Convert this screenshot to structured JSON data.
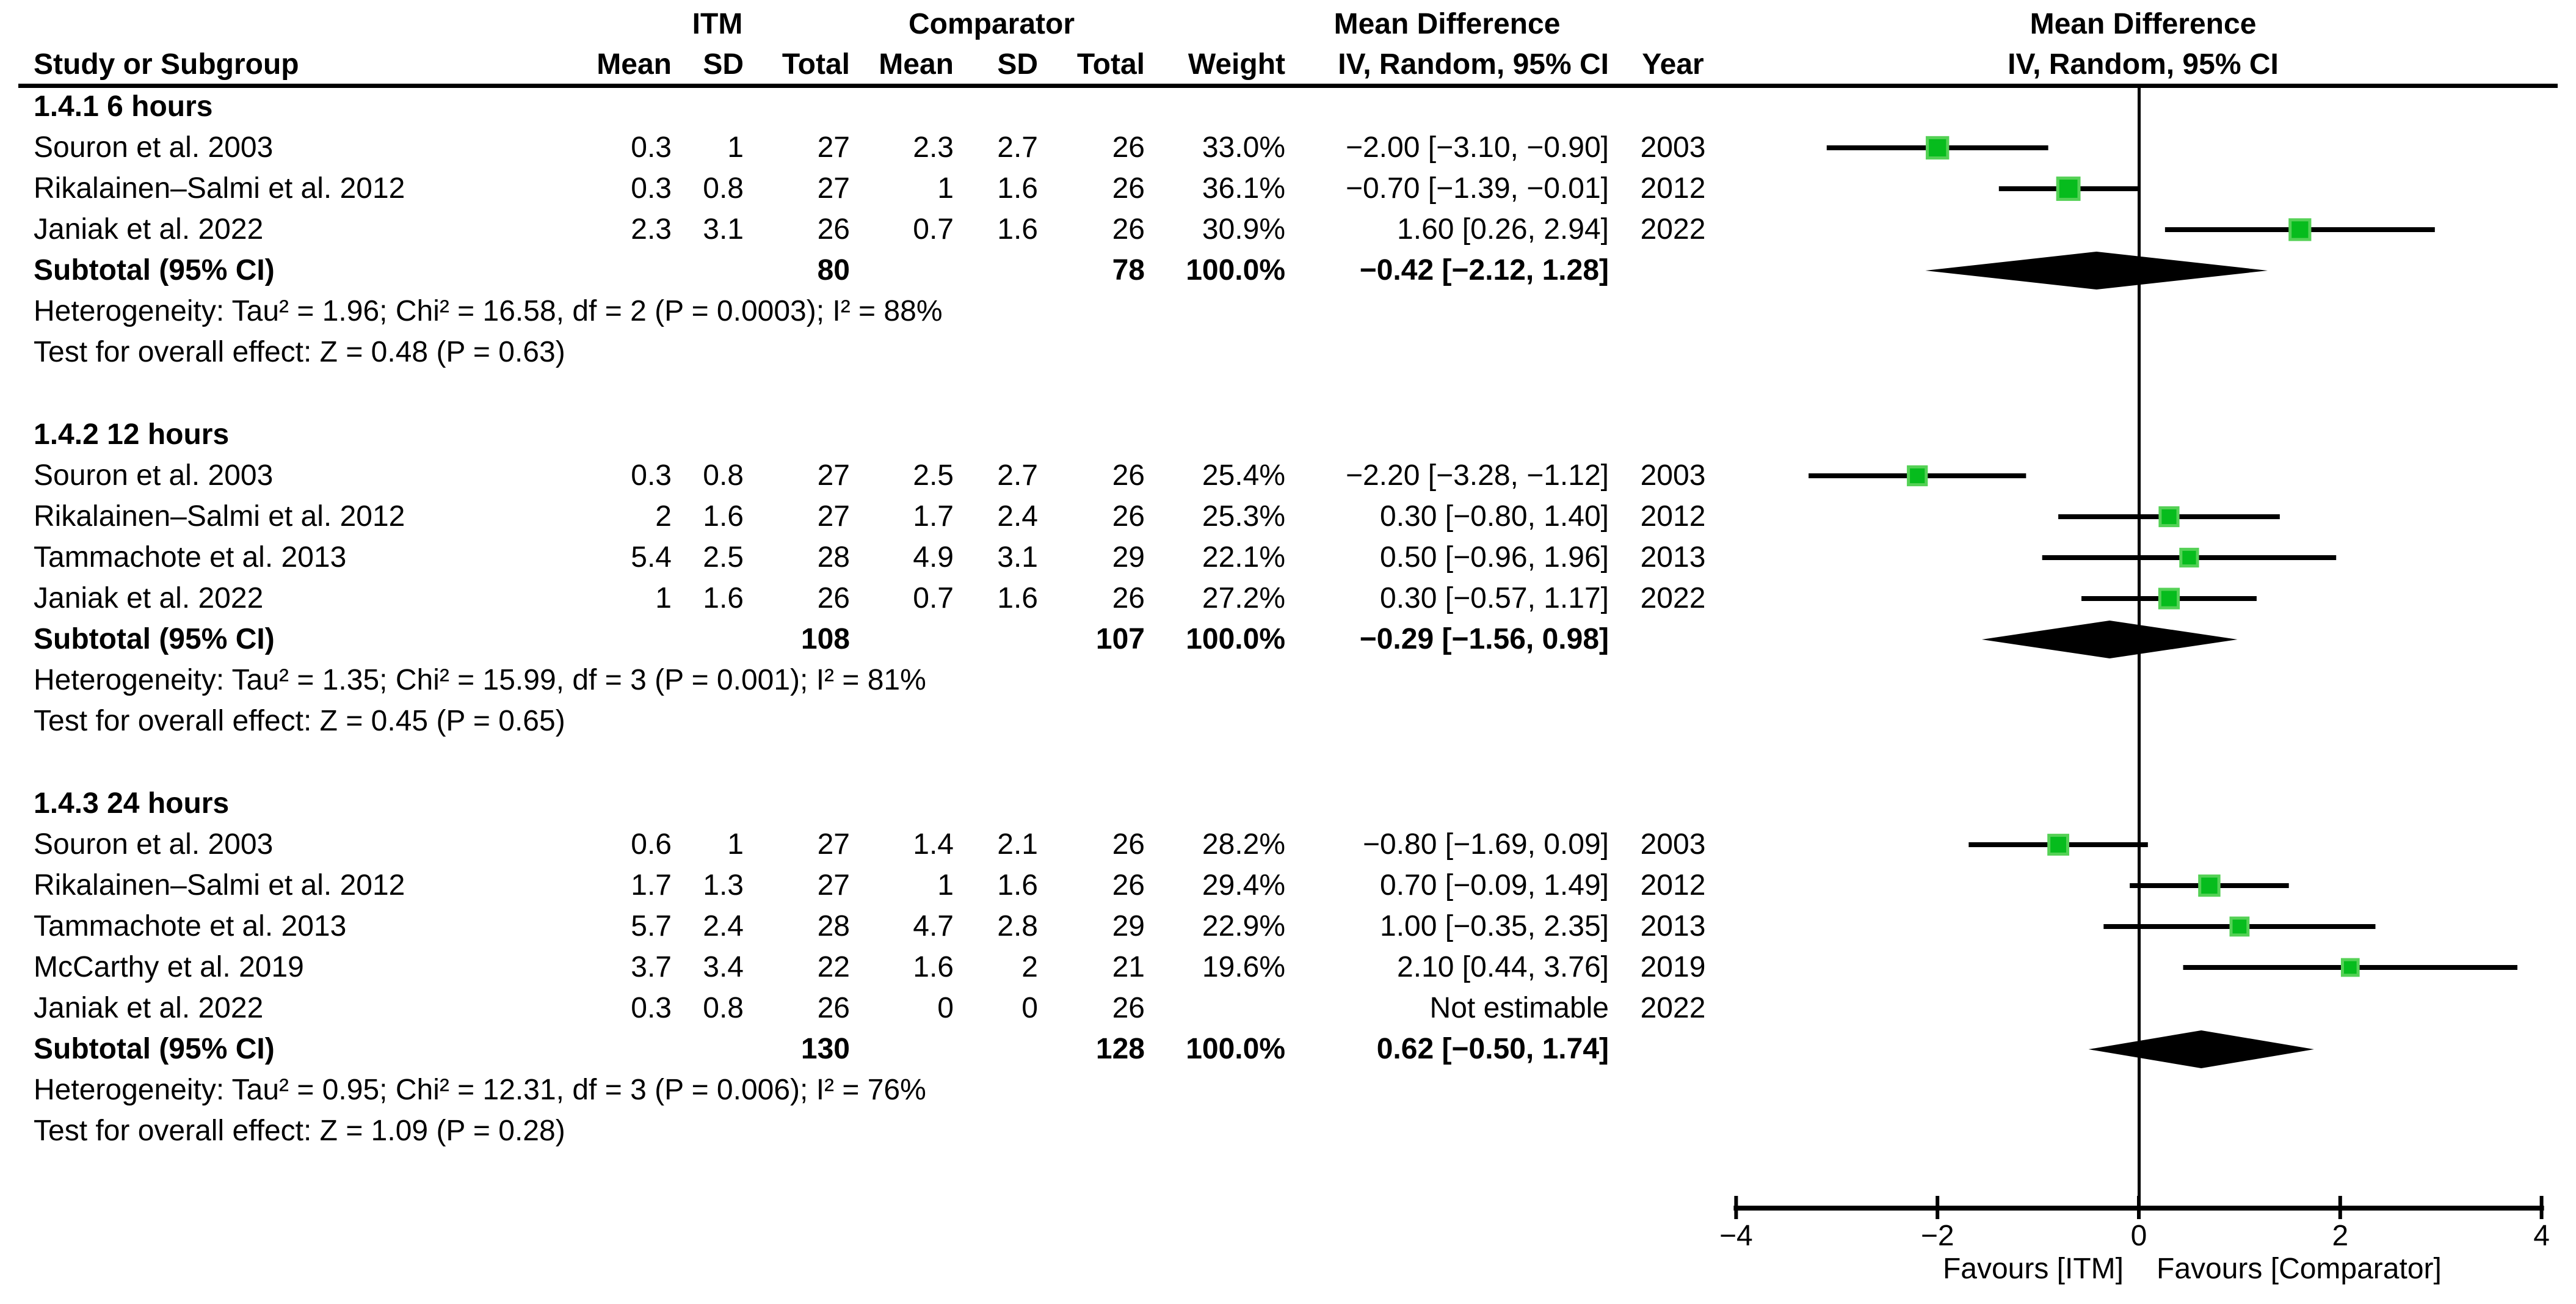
{
  "header": {
    "study_col": "Study or Subgroup",
    "group_itm": "ITM",
    "group_comparator": "Comparator",
    "md_col_line1": "Mean Difference",
    "md_col_line2": "IV, Random, 95% CI",
    "plot_col_line1": "Mean Difference",
    "plot_col_line2": "IV, Random, 95% CI",
    "mean": "Mean",
    "sd": "SD",
    "total": "Total",
    "weight": "Weight",
    "year": "Year"
  },
  "axis": {
    "min": -4,
    "max": 4,
    "tick_values": [
      -4,
      -2,
      0,
      2,
      4
    ],
    "tick_labels": [
      "−4",
      "−2",
      "0",
      "2",
      "4"
    ],
    "favours_left": "Favours [ITM]",
    "favours_right": "Favours [Comparator]"
  },
  "colors": {
    "marker_green": "#06BC1D",
    "marker_green_edge": "#55D156",
    "line_black": "#000000"
  },
  "chart_data": {
    "type": "forest",
    "effect_measure": "Mean Difference, IV, Random, 95% CI",
    "xlim": [
      -4,
      4
    ],
    "subgroups": [
      {
        "title": "1.4.1 6 hours",
        "studies": [
          {
            "name": "Souron et al. 2003",
            "itm_mean": "0.3",
            "itm_sd": "1",
            "itm_total": "27",
            "comp_mean": "2.3",
            "comp_sd": "2.7",
            "comp_total": "26",
            "weight": "33.0%",
            "md_text": "−2.00 [−3.10, −0.90]",
            "year": "2003",
            "md": -2.0,
            "lo": -3.1,
            "hi": -0.9,
            "w": 33.0
          },
          {
            "name": "Rikalainen–Salmi et al. 2012",
            "itm_mean": "0.3",
            "itm_sd": "0.8",
            "itm_total": "27",
            "comp_mean": "1",
            "comp_sd": "1.6",
            "comp_total": "26",
            "weight": "36.1%",
            "md_text": "−0.70 [−1.39, −0.01]",
            "year": "2012",
            "md": -0.7,
            "lo": -1.39,
            "hi": -0.01,
            "w": 36.1
          },
          {
            "name": "Janiak et al. 2022",
            "itm_mean": "2.3",
            "itm_sd": "3.1",
            "itm_total": "26",
            "comp_mean": "0.7",
            "comp_sd": "1.6",
            "comp_total": "26",
            "weight": "30.9%",
            "md_text": "1.60 [0.26, 2.94]",
            "year": "2022",
            "md": 1.6,
            "lo": 0.26,
            "hi": 2.94,
            "w": 30.9
          }
        ],
        "subtotal": {
          "label": "Subtotal (95% CI)",
          "itm_total": "80",
          "comp_total": "78",
          "weight": "100.0%",
          "md_text": "−0.42 [−2.12, 1.28]",
          "md": -0.42,
          "lo": -2.12,
          "hi": 1.28
        },
        "heterogeneity": "Heterogeneity: Tau² = 1.96; Chi² = 16.58, df = 2 (P = 0.0003); I² = 88%",
        "overall_effect": "Test for overall effect: Z = 0.48 (P = 0.63)"
      },
      {
        "title": "1.4.2 12 hours",
        "studies": [
          {
            "name": "Souron et al. 2003",
            "itm_mean": "0.3",
            "itm_sd": "0.8",
            "itm_total": "27",
            "comp_mean": "2.5",
            "comp_sd": "2.7",
            "comp_total": "26",
            "weight": "25.4%",
            "md_text": "−2.20 [−3.28, −1.12]",
            "year": "2003",
            "md": -2.2,
            "lo": -3.28,
            "hi": -1.12,
            "w": 25.4
          },
          {
            "name": "Rikalainen–Salmi et al. 2012",
            "itm_mean": "2",
            "itm_sd": "1.6",
            "itm_total": "27",
            "comp_mean": "1.7",
            "comp_sd": "2.4",
            "comp_total": "26",
            "weight": "25.3%",
            "md_text": "0.30 [−0.80, 1.40]",
            "year": "2012",
            "md": 0.3,
            "lo": -0.8,
            "hi": 1.4,
            "w": 25.3
          },
          {
            "name": "Tammachote et al. 2013",
            "itm_mean": "5.4",
            "itm_sd": "2.5",
            "itm_total": "28",
            "comp_mean": "4.9",
            "comp_sd": "3.1",
            "comp_total": "29",
            "weight": "22.1%",
            "md_text": "0.50 [−0.96, 1.96]",
            "year": "2013",
            "md": 0.5,
            "lo": -0.96,
            "hi": 1.96,
            "w": 22.1
          },
          {
            "name": "Janiak et al. 2022",
            "itm_mean": "1",
            "itm_sd": "1.6",
            "itm_total": "26",
            "comp_mean": "0.7",
            "comp_sd": "1.6",
            "comp_total": "26",
            "weight": "27.2%",
            "md_text": "0.30 [−0.57, 1.17]",
            "year": "2022",
            "md": 0.3,
            "lo": -0.57,
            "hi": 1.17,
            "w": 27.2
          }
        ],
        "subtotal": {
          "label": "Subtotal (95% CI)",
          "itm_total": "108",
          "comp_total": "107",
          "weight": "100.0%",
          "md_text": "−0.29 [−1.56, 0.98]",
          "md": -0.29,
          "lo": -1.56,
          "hi": 0.98
        },
        "heterogeneity": "Heterogeneity: Tau² = 1.35; Chi² = 15.99, df = 3 (P = 0.001); I² = 81%",
        "overall_effect": "Test for overall effect: Z = 0.45 (P = 0.65)"
      },
      {
        "title": "1.4.3 24 hours",
        "studies": [
          {
            "name": "Souron et al. 2003",
            "itm_mean": "0.6",
            "itm_sd": "1",
            "itm_total": "27",
            "comp_mean": "1.4",
            "comp_sd": "2.1",
            "comp_total": "26",
            "weight": "28.2%",
            "md_text": "−0.80 [−1.69, 0.09]",
            "year": "2003",
            "md": -0.8,
            "lo": -1.69,
            "hi": 0.09,
            "w": 28.2
          },
          {
            "name": "Rikalainen–Salmi et al. 2012",
            "itm_mean": "1.7",
            "itm_sd": "1.3",
            "itm_total": "27",
            "comp_mean": "1",
            "comp_sd": "1.6",
            "comp_total": "26",
            "weight": "29.4%",
            "md_text": "0.70 [−0.09, 1.49]",
            "year": "2012",
            "md": 0.7,
            "lo": -0.09,
            "hi": 1.49,
            "w": 29.4
          },
          {
            "name": "Tammachote et al. 2013",
            "itm_mean": "5.7",
            "itm_sd": "2.4",
            "itm_total": "28",
            "comp_mean": "4.7",
            "comp_sd": "2.8",
            "comp_total": "29",
            "weight": "22.9%",
            "md_text": "1.00 [−0.35, 2.35]",
            "year": "2013",
            "md": 1.0,
            "lo": -0.35,
            "hi": 2.35,
            "w": 22.9
          },
          {
            "name": "McCarthy et al. 2019",
            "itm_mean": "3.7",
            "itm_sd": "3.4",
            "itm_total": "22",
            "comp_mean": "1.6",
            "comp_sd": "2",
            "comp_total": "21",
            "weight": "19.6%",
            "md_text": "2.10 [0.44, 3.76]",
            "year": "2019",
            "md": 2.1,
            "lo": 0.44,
            "hi": 3.76,
            "w": 19.6
          },
          {
            "name": "Janiak et al. 2022",
            "itm_mean": "0.3",
            "itm_sd": "0.8",
            "itm_total": "26",
            "comp_mean": "0",
            "comp_sd": "0",
            "comp_total": "26",
            "weight": "",
            "md_text": "Not estimable",
            "year": "2022",
            "md": null,
            "lo": null,
            "hi": null,
            "w": null
          }
        ],
        "subtotal": {
          "label": "Subtotal (95% CI)",
          "itm_total": "130",
          "comp_total": "128",
          "weight": "100.0%",
          "md_text": "0.62 [−0.50, 1.74]",
          "md": 0.62,
          "lo": -0.5,
          "hi": 1.74
        },
        "heterogeneity": "Heterogeneity: Tau² = 0.95; Chi² = 12.31, df = 3 (P = 0.006); I² = 76%",
        "overall_effect": "Test for overall effect: Z = 1.09 (P = 0.28)"
      }
    ]
  }
}
